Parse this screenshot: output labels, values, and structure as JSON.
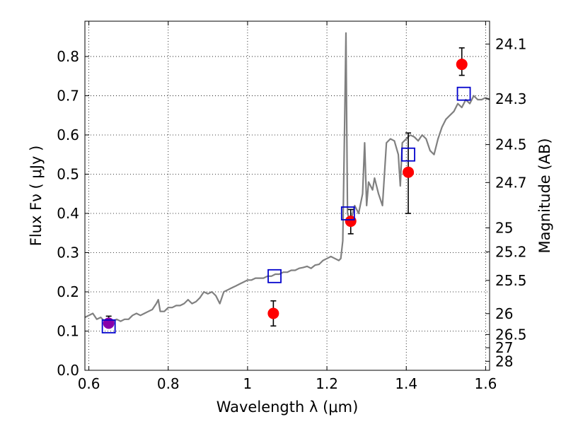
{
  "chart_data": {
    "type": "scatter",
    "xlabel": "Wavelength  λ (μm)",
    "ylabel": "Flux  Fν  ( μJy )",
    "y2label": "Magnitude (AB)",
    "xlim": [
      0.59,
      1.61
    ],
    "ylim": [
      0.0,
      0.89
    ],
    "grid": true,
    "x_ticks": [
      0.6,
      0.8,
      1.0,
      1.2,
      1.4,
      1.6
    ],
    "x_tick_labels": [
      "0.6",
      "0.8",
      "1",
      "1.2",
      "1.4",
      "1.6"
    ],
    "y_ticks": [
      0.0,
      0.1,
      0.2,
      0.3,
      0.4,
      0.5,
      0.6,
      0.7,
      0.8
    ],
    "y_tick_labels": [
      "0.0",
      "0.1",
      "0.2",
      "0.3",
      "0.4",
      "0.5",
      "0.6",
      "0.7",
      "0.8"
    ],
    "y2_ticks": [
      24.1,
      24.3,
      24.5,
      24.7,
      25,
      25.2,
      25.5,
      26,
      26.5,
      27,
      28
    ],
    "y2_tick_labels": [
      "24.1",
      "24.3",
      "24.5",
      "24.7",
      "25",
      "25.2",
      "25.5",
      "26",
      "26.5",
      "27",
      "28"
    ],
    "colors": {
      "model": "#808080",
      "observed": "#ff0000",
      "synthetic": "#0000cc",
      "observed_overlap": "#8800aa"
    },
    "series": [
      {
        "type": "line",
        "x": [
          0.59,
          0.6,
          0.61,
          0.62,
          0.63,
          0.64,
          0.65,
          0.66,
          0.67,
          0.68,
          0.69,
          0.7,
          0.71,
          0.72,
          0.73,
          0.74,
          0.75,
          0.76,
          0.77,
          0.775,
          0.78,
          0.79,
          0.8,
          0.81,
          0.82,
          0.83,
          0.84,
          0.85,
          0.86,
          0.87,
          0.88,
          0.89,
          0.9,
          0.91,
          0.92,
          0.93,
          0.94,
          0.95,
          0.96,
          0.97,
          0.98,
          0.99,
          1.0,
          1.01,
          1.02,
          1.03,
          1.04,
          1.05,
          1.06,
          1.07,
          1.08,
          1.09,
          1.1,
          1.11,
          1.12,
          1.13,
          1.14,
          1.15,
          1.16,
          1.17,
          1.18,
          1.19,
          1.2,
          1.21,
          1.22,
          1.23,
          1.235,
          1.24,
          1.245,
          1.248,
          1.25,
          1.252,
          1.255,
          1.26,
          1.265,
          1.27,
          1.28,
          1.29,
          1.295,
          1.3,
          1.305,
          1.31,
          1.315,
          1.32,
          1.33,
          1.34,
          1.35,
          1.36,
          1.37,
          1.38,
          1.385,
          1.39,
          1.4,
          1.41,
          1.42,
          1.43,
          1.44,
          1.45,
          1.46,
          1.47,
          1.48,
          1.49,
          1.5,
          1.51,
          1.52,
          1.53,
          1.54,
          1.55,
          1.56,
          1.57,
          1.58,
          1.59,
          1.6,
          1.61
        ],
        "y": [
          0.135,
          0.14,
          0.145,
          0.13,
          0.135,
          0.125,
          0.13,
          0.125,
          0.13,
          0.125,
          0.13,
          0.13,
          0.14,
          0.145,
          0.14,
          0.145,
          0.15,
          0.155,
          0.17,
          0.18,
          0.15,
          0.15,
          0.16,
          0.16,
          0.165,
          0.165,
          0.17,
          0.18,
          0.17,
          0.175,
          0.185,
          0.2,
          0.195,
          0.2,
          0.19,
          0.17,
          0.2,
          0.205,
          0.21,
          0.215,
          0.22,
          0.225,
          0.23,
          0.23,
          0.235,
          0.235,
          0.235,
          0.24,
          0.24,
          0.245,
          0.245,
          0.25,
          0.25,
          0.255,
          0.255,
          0.26,
          0.262,
          0.265,
          0.26,
          0.268,
          0.27,
          0.28,
          0.285,
          0.29,
          0.285,
          0.28,
          0.285,
          0.33,
          0.65,
          0.86,
          0.62,
          0.4,
          0.39,
          0.38,
          0.4,
          0.42,
          0.4,
          0.45,
          0.58,
          0.42,
          0.48,
          0.47,
          0.46,
          0.49,
          0.45,
          0.42,
          0.58,
          0.59,
          0.585,
          0.55,
          0.47,
          0.58,
          0.59,
          0.6,
          0.595,
          0.585,
          0.6,
          0.59,
          0.56,
          0.55,
          0.59,
          0.62,
          0.64,
          0.65,
          0.66,
          0.68,
          0.67,
          0.69,
          0.68,
          0.7,
          0.69,
          0.69,
          0.695,
          0.69
        ]
      },
      {
        "type": "scatter",
        "marker": "circle",
        "x": [
          0.65,
          1.065,
          1.26,
          1.405,
          1.54
        ],
        "y": [
          0.12,
          0.145,
          0.38,
          0.505,
          0.78
        ],
        "yerr_low": [
          0.01,
          0.032,
          0.032,
          0.105,
          0.028
        ],
        "yerr_high": [
          0.018,
          0.032,
          0.03,
          0.1,
          0.042
        ]
      },
      {
        "type": "scatter",
        "marker": "square",
        "x": [
          0.65,
          1.068,
          1.253,
          1.405,
          1.545
        ],
        "y": [
          0.112,
          0.24,
          0.4,
          0.55,
          0.705
        ]
      }
    ]
  }
}
